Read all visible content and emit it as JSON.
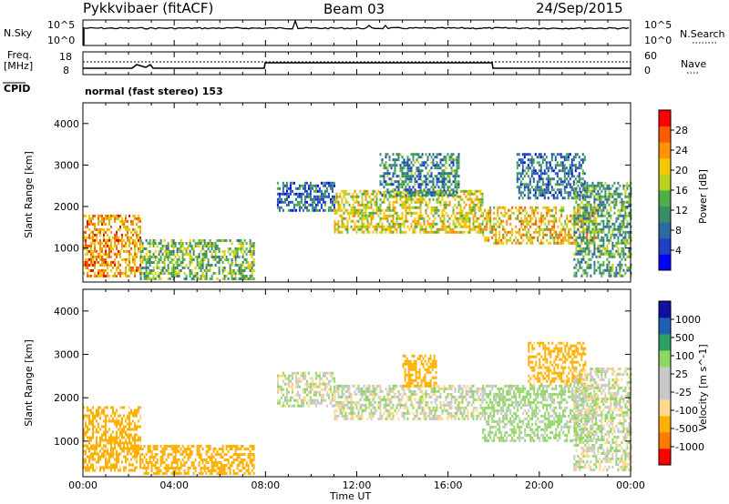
{
  "header": {
    "title": "Pykkvibaer (fitACF)",
    "beam": "Beam 03",
    "date": "24/Sep/2015"
  },
  "strip_nsky": {
    "left_label": "N.Sky",
    "right_label": "N.Search",
    "left_ticks": [
      "10^5",
      "10^0"
    ],
    "right_ticks": [
      "10^5",
      "10^0"
    ]
  },
  "strip_freq": {
    "left_label_1": "Freq.",
    "left_label_2": "[MHz]",
    "left_ticks": [
      "18",
      "8"
    ],
    "right_label": "Nave",
    "right_ticks": [
      "60",
      "0"
    ]
  },
  "cpid": {
    "label": "CPID",
    "value": "normal (fast stereo) 153"
  },
  "x_axis": {
    "label": "Time UT",
    "ticks": [
      "00:00",
      "04:00",
      "08:00",
      "12:00",
      "16:00",
      "20:00",
      "00:00"
    ]
  },
  "colors": {
    "power_scale": [
      "#0000ff",
      "#1f3fc8",
      "#2e6aa0",
      "#3a8d6a",
      "#4fae49",
      "#b8d21c",
      "#f4c800",
      "#ff9400",
      "#ff5a00",
      "#ff0000"
    ],
    "velocity_scale": [
      "#ff0000",
      "#ff7a00",
      "#ffb000",
      "#ffd98a",
      "#c8c8c8",
      "#c8c8c8",
      "#8fd860",
      "#2e9f63",
      "#1f5fb3",
      "#1010a0"
    ],
    "nsky_line": "#000000"
  },
  "chart_data": [
    {
      "type": "heatmap",
      "name": "power",
      "x_range_hours": [
        0,
        24
      ],
      "ylabel": "Slant Range [km]",
      "y_ticks": [
        "4000",
        "3000",
        "2000",
        "1000"
      ],
      "ylim": [
        180,
        4500
      ],
      "colorbar_label": "Power [dB]",
      "colorbar_ticks": [
        "28",
        "24",
        "20",
        "16",
        "12",
        "8",
        "4"
      ],
      "colorbar_range": [
        0,
        30
      ],
      "echo_regions": [
        {
          "t0": 0.0,
          "t1": 2.5,
          "r0": 300,
          "r1": 1800,
          "level": 22
        },
        {
          "t0": 2.5,
          "t1": 7.5,
          "r0": 250,
          "r1": 1200,
          "level": 14
        },
        {
          "t0": 8.5,
          "t1": 11.0,
          "r0": 1900,
          "r1": 2600,
          "level": 8
        },
        {
          "t0": 11.0,
          "t1": 17.5,
          "r0": 1400,
          "r1": 2400,
          "level": 18
        },
        {
          "t0": 13.0,
          "t1": 16.5,
          "r0": 2300,
          "r1": 3300,
          "level": 10
        },
        {
          "t0": 17.5,
          "t1": 22.5,
          "r0": 1100,
          "r1": 2000,
          "level": 20
        },
        {
          "t0": 19.0,
          "t1": 22.0,
          "r0": 2200,
          "r1": 3300,
          "level": 8
        },
        {
          "t0": 21.5,
          "t1": 24.0,
          "r0": 300,
          "r1": 2600,
          "level": 12
        }
      ]
    },
    {
      "type": "heatmap",
      "name": "velocity",
      "x_range_hours": [
        0,
        24
      ],
      "ylabel": "Slant Range [km]",
      "y_ticks": [
        "4000",
        "3000",
        "2000",
        "1000"
      ],
      "ylim": [
        180,
        4500
      ],
      "colorbar_label": "Velocity [m s^-1]",
      "colorbar_ticks": [
        "1000",
        "500",
        "100",
        "25",
        "-25",
        "-100",
        "-500",
        "-1000"
      ],
      "echo_regions": [
        {
          "t0": 0.0,
          "t1": 2.5,
          "r0": 300,
          "r1": 1800,
          "level": -150
        },
        {
          "t0": 2.5,
          "t1": 7.5,
          "r0": 250,
          "r1": 900,
          "level": -200
        },
        {
          "t0": 8.5,
          "t1": 11.0,
          "r0": 1800,
          "r1": 2600,
          "level": 0
        },
        {
          "t0": 11.0,
          "t1": 17.5,
          "r0": 1500,
          "r1": 2300,
          "level": 0
        },
        {
          "t0": 14.0,
          "t1": 15.5,
          "r0": 2300,
          "r1": 3000,
          "level": -400
        },
        {
          "t0": 17.5,
          "t1": 22.5,
          "r0": 1000,
          "r1": 2300,
          "level": 40
        },
        {
          "t0": 19.5,
          "t1": 22.0,
          "r0": 2300,
          "r1": 3300,
          "level": -150
        },
        {
          "t0": 21.5,
          "t1": 24.0,
          "r0": 300,
          "r1": 2700,
          "level": 0
        }
      ]
    }
  ]
}
